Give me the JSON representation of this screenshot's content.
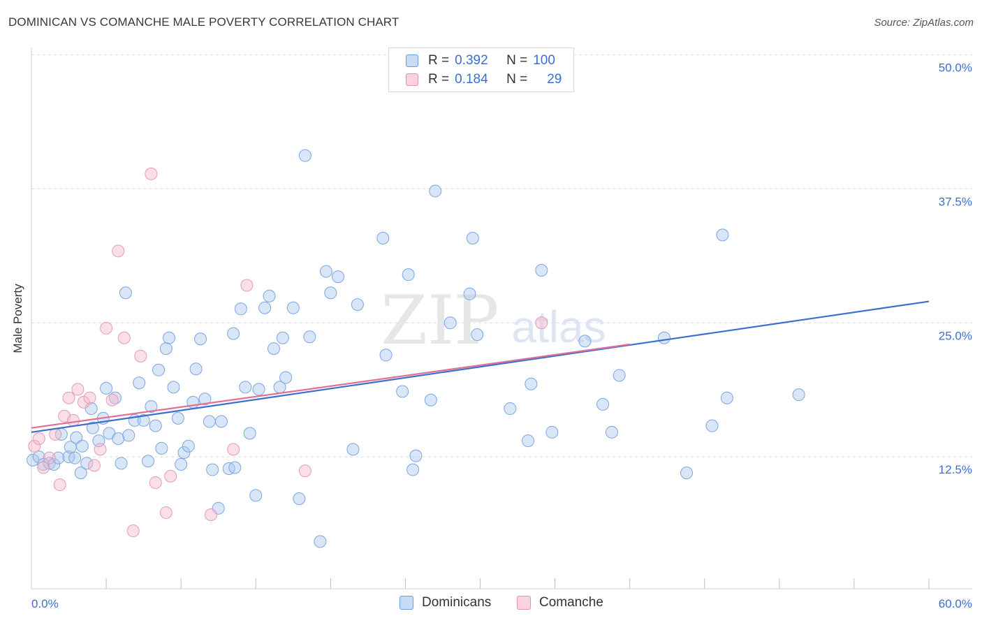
{
  "title": "DOMINICAN VS COMANCHE MALE POVERTY CORRELATION CHART",
  "source": "Source: ZipAtlas.com",
  "watermark": {
    "zip": "ZIP",
    "atlas": "atlas"
  },
  "legend": {
    "rows": [
      {
        "r_label": "R =",
        "r_value": "0.392",
        "n_label": "N =",
        "n_value": "100",
        "color": "#a8c8f0"
      },
      {
        "r_label": "R =",
        "r_value": "0.184",
        "n_label": "N =",
        "n_value": "29",
        "color": "#f5b8cb"
      }
    ]
  },
  "bottom_legend": {
    "series1": "Dominicans",
    "series2": "Comanche"
  },
  "colors": {
    "blue": "#3a6fd0",
    "blue_fill": "#a8c8f0",
    "pink": "#e07095",
    "pink_fill": "#f5b8cb",
    "axis_text": "#3a6fd0"
  },
  "chart_data": {
    "type": "scatter",
    "title": "DOMINICAN VS COMANCHE MALE POVERTY CORRELATION CHART",
    "xlabel": "",
    "ylabel": "Male Poverty",
    "xlim": [
      0,
      60
    ],
    "ylim": [
      0,
      50
    ],
    "x_tick_labels": [
      "0.0%",
      "60.0%"
    ],
    "y_ticks": [
      12.5,
      25.0,
      37.5,
      50.0
    ],
    "y_tick_labels": [
      "12.5%",
      "25.0%",
      "37.5%",
      "50.0%"
    ],
    "grid": true,
    "series": [
      {
        "name": "Dominicans",
        "r": 0.392,
        "n": 100,
        "trend": {
          "x0": 0,
          "y0": 14.8,
          "x1": 60,
          "y1": 27.0
        },
        "points": [
          [
            0.1,
            12.2
          ],
          [
            0.5,
            12.5
          ],
          [
            0.8,
            11.8
          ],
          [
            1.2,
            11.9
          ],
          [
            1.5,
            11.8
          ],
          [
            1.8,
            12.4
          ],
          [
            2.0,
            14.6
          ],
          [
            2.5,
            12.5
          ],
          [
            2.6,
            13.4
          ],
          [
            2.9,
            12.4
          ],
          [
            3.0,
            14.3
          ],
          [
            3.3,
            11.0
          ],
          [
            3.4,
            13.5
          ],
          [
            3.7,
            11.9
          ],
          [
            4.0,
            17.0
          ],
          [
            4.1,
            15.2
          ],
          [
            4.5,
            14.0
          ],
          [
            4.8,
            16.1
          ],
          [
            5.0,
            18.9
          ],
          [
            5.2,
            14.7
          ],
          [
            5.6,
            18.0
          ],
          [
            5.8,
            14.2
          ],
          [
            6.0,
            11.9
          ],
          [
            6.3,
            27.8
          ],
          [
            6.5,
            14.5
          ],
          [
            6.9,
            15.9
          ],
          [
            7.2,
            19.4
          ],
          [
            7.5,
            15.9
          ],
          [
            7.8,
            12.1
          ],
          [
            8.0,
            17.2
          ],
          [
            8.3,
            15.4
          ],
          [
            8.5,
            20.6
          ],
          [
            8.7,
            13.3
          ],
          [
            9.0,
            22.6
          ],
          [
            9.2,
            23.6
          ],
          [
            9.5,
            19.0
          ],
          [
            9.8,
            16.1
          ],
          [
            10.0,
            11.8
          ],
          [
            10.2,
            12.9
          ],
          [
            10.5,
            13.5
          ],
          [
            10.8,
            17.6
          ],
          [
            11.0,
            20.7
          ],
          [
            11.3,
            23.5
          ],
          [
            11.6,
            17.9
          ],
          [
            11.9,
            15.8
          ],
          [
            12.1,
            11.3
          ],
          [
            12.5,
            7.7
          ],
          [
            12.7,
            15.8
          ],
          [
            13.2,
            11.4
          ],
          [
            13.5,
            24.0
          ],
          [
            13.6,
            11.5
          ],
          [
            14.0,
            26.3
          ],
          [
            14.3,
            19.0
          ],
          [
            14.6,
            14.7
          ],
          [
            15.0,
            8.9
          ],
          [
            15.2,
            18.8
          ],
          [
            15.6,
            26.4
          ],
          [
            15.9,
            27.5
          ],
          [
            16.2,
            22.6
          ],
          [
            16.6,
            19.0
          ],
          [
            16.8,
            23.6
          ],
          [
            17.0,
            19.9
          ],
          [
            17.5,
            26.4
          ],
          [
            17.9,
            8.6
          ],
          [
            18.3,
            40.6
          ],
          [
            18.6,
            23.7
          ],
          [
            19.3,
            4.6
          ],
          [
            19.7,
            29.8
          ],
          [
            20.0,
            27.8
          ],
          [
            20.5,
            29.3
          ],
          [
            21.5,
            13.2
          ],
          [
            21.8,
            26.7
          ],
          [
            23.5,
            32.9
          ],
          [
            23.7,
            22.0
          ],
          [
            24.8,
            18.6
          ],
          [
            25.2,
            29.5
          ],
          [
            25.5,
            11.3
          ],
          [
            25.7,
            12.6
          ],
          [
            26.7,
            17.8
          ],
          [
            27.0,
            37.3
          ],
          [
            28.0,
            25.0
          ],
          [
            29.3,
            27.7
          ],
          [
            29.5,
            32.9
          ],
          [
            29.8,
            23.9
          ],
          [
            32.0,
            17.0
          ],
          [
            33.2,
            14.0
          ],
          [
            33.4,
            19.3
          ],
          [
            34.0,
            49.5
          ],
          [
            34.1,
            29.9
          ],
          [
            34.8,
            14.8
          ],
          [
            37.0,
            23.3
          ],
          [
            38.2,
            17.4
          ],
          [
            38.8,
            14.8
          ],
          [
            39.3,
            20.1
          ],
          [
            42.3,
            23.6
          ],
          [
            43.8,
            11.0
          ],
          [
            45.5,
            15.4
          ],
          [
            46.2,
            33.2
          ],
          [
            46.5,
            18.0
          ],
          [
            51.3,
            18.3
          ]
        ]
      },
      {
        "name": "Comanche",
        "r": 0.184,
        "n": 29,
        "trend": {
          "x0": 0,
          "y0": 15.2,
          "x1": 40,
          "y1": 23.0
        },
        "points": [
          [
            0.2,
            13.5
          ],
          [
            0.5,
            14.2
          ],
          [
            0.8,
            11.5
          ],
          [
            1.2,
            12.4
          ],
          [
            1.6,
            14.6
          ],
          [
            1.9,
            9.9
          ],
          [
            2.2,
            16.3
          ],
          [
            2.5,
            18.0
          ],
          [
            2.8,
            15.9
          ],
          [
            3.1,
            18.8
          ],
          [
            3.5,
            17.6
          ],
          [
            3.9,
            18.0
          ],
          [
            4.2,
            11.7
          ],
          [
            4.6,
            13.2
          ],
          [
            5.0,
            24.5
          ],
          [
            5.4,
            17.8
          ],
          [
            5.8,
            31.7
          ],
          [
            6.2,
            23.6
          ],
          [
            6.8,
            5.6
          ],
          [
            7.3,
            21.9
          ],
          [
            8.0,
            38.9
          ],
          [
            8.3,
            10.1
          ],
          [
            9.0,
            7.3
          ],
          [
            9.3,
            10.7
          ],
          [
            12.0,
            7.1
          ],
          [
            13.5,
            13.2
          ],
          [
            14.4,
            28.5
          ],
          [
            18.3,
            11.2
          ],
          [
            34.1,
            25.0
          ]
        ]
      }
    ]
  }
}
